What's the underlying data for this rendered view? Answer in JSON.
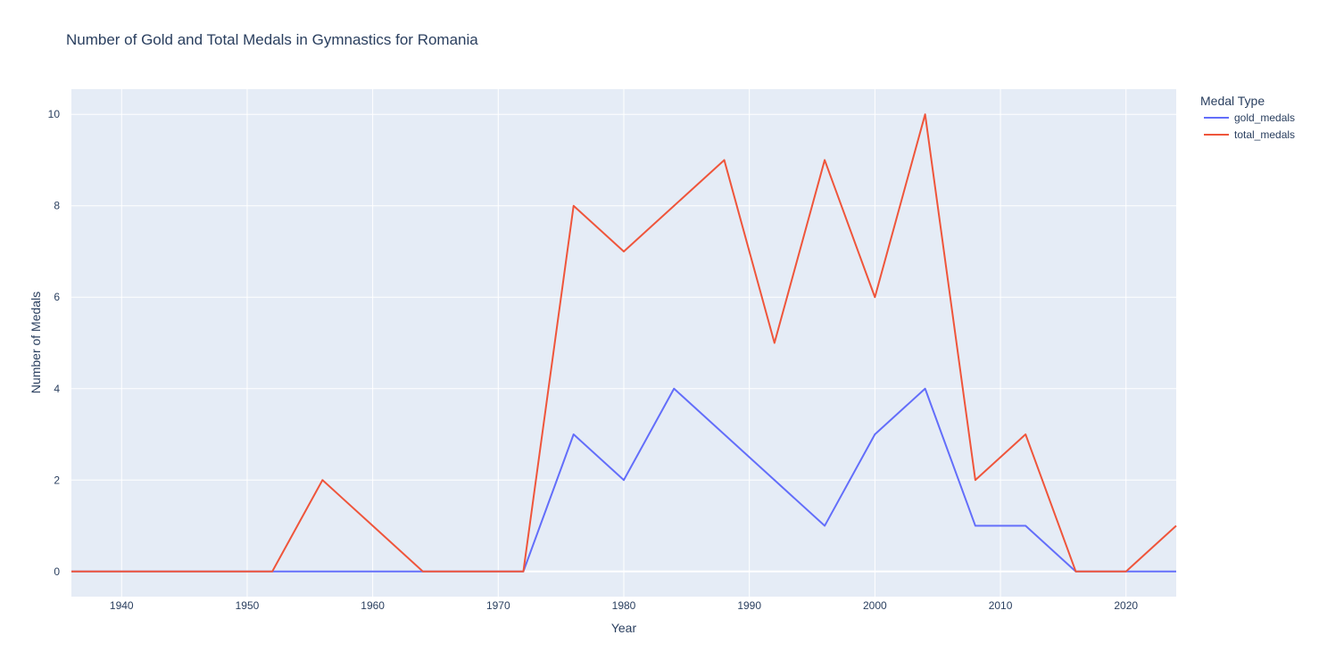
{
  "chart_data": {
    "type": "line",
    "title": "Number of Gold and Total Medals in Gymnastics for Romania",
    "xlabel": "Year",
    "ylabel": "Number of Medals",
    "xlim": [
      1936,
      2024
    ],
    "ylim": [
      -0.55,
      10.55
    ],
    "x_ticks": [
      1940,
      1950,
      1960,
      1970,
      1980,
      1990,
      2000,
      2010,
      2020
    ],
    "y_ticks": [
      0,
      2,
      4,
      6,
      8,
      10
    ],
    "grid": true,
    "legend_title": "Medal Type",
    "legend_placement": "right",
    "x": [
      1936,
      1948,
      1952,
      1956,
      1960,
      1964,
      1968,
      1972,
      1976,
      1980,
      1984,
      1988,
      1992,
      1996,
      2000,
      2004,
      2008,
      2012,
      2016,
      2020,
      2024
    ],
    "series": [
      {
        "name": "gold_medals",
        "color": "#636efa",
        "values": [
          0,
          0,
          0,
          0,
          0,
          0,
          0,
          0,
          3,
          2,
          4,
          3,
          2,
          1,
          3,
          4,
          1,
          1,
          0,
          0,
          0
        ]
      },
      {
        "name": "total_medals",
        "color": "#ef553b",
        "values": [
          0,
          0,
          0,
          2,
          1,
          0,
          0,
          0,
          8,
          7,
          8,
          9,
          5,
          9,
          6,
          10,
          2,
          3,
          0,
          0,
          1
        ]
      }
    ],
    "plot_bg": "#e5ecf6",
    "grid_color": "#ffffff"
  }
}
